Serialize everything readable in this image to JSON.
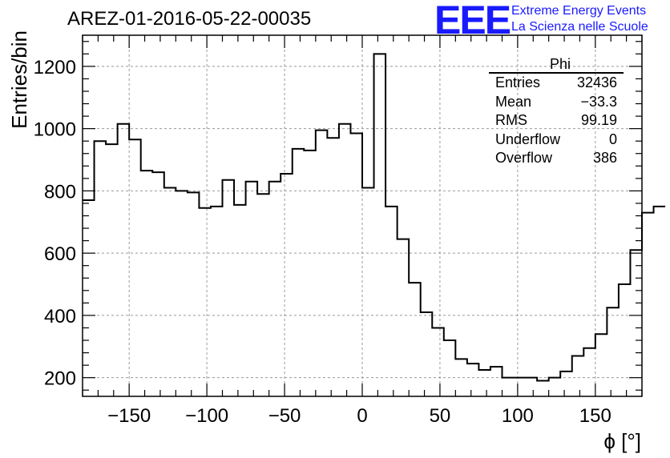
{
  "title": "AREZ-01-2016-05-22-00035",
  "logo": {
    "mark": "EEE",
    "line1": "Extreme Energy Events",
    "line2": "La Scienza nelle Scuole",
    "color": "#1a1aff"
  },
  "stats_box": {
    "name": "Phi",
    "rows": [
      {
        "label": "Entries",
        "value": "32436"
      },
      {
        "label": "Mean",
        "value": "−33.3"
      },
      {
        "label": "RMS",
        "value": "99.19"
      },
      {
        "label": "Underflow",
        "value": "0"
      },
      {
        "label": "Overflow",
        "value": "386"
      }
    ]
  },
  "chart_data": {
    "type": "bar",
    "style": "step-histogram",
    "title": "AREZ-01-2016-05-22-00035",
    "xlabel": "ϕ [°]",
    "ylabel": "Entries/bin",
    "xlim": [
      -180,
      180
    ],
    "ylim": [
      140,
      1300
    ],
    "xticks": [
      -150,
      -100,
      -50,
      0,
      50,
      100,
      150
    ],
    "xtick_labels": [
      "−150",
      "−100",
      "−50",
      "0",
      "50",
      "100",
      "150"
    ],
    "yticks": [
      200,
      400,
      600,
      800,
      1000,
      1200
    ],
    "grid": true,
    "bin_width": 7.5,
    "bin_edges_start": -180,
    "values": [
      770,
      960,
      950,
      1015,
      965,
      865,
      860,
      810,
      800,
      795,
      745,
      750,
      835,
      755,
      830,
      790,
      830,
      855,
      935,
      930,
      995,
      970,
      1015,
      985,
      810,
      1240,
      750,
      645,
      505,
      410,
      360,
      320,
      260,
      245,
      225,
      235,
      200,
      200,
      200,
      190,
      200,
      220,
      270,
      295,
      340,
      425,
      500,
      610,
      730,
      750
    ]
  }
}
